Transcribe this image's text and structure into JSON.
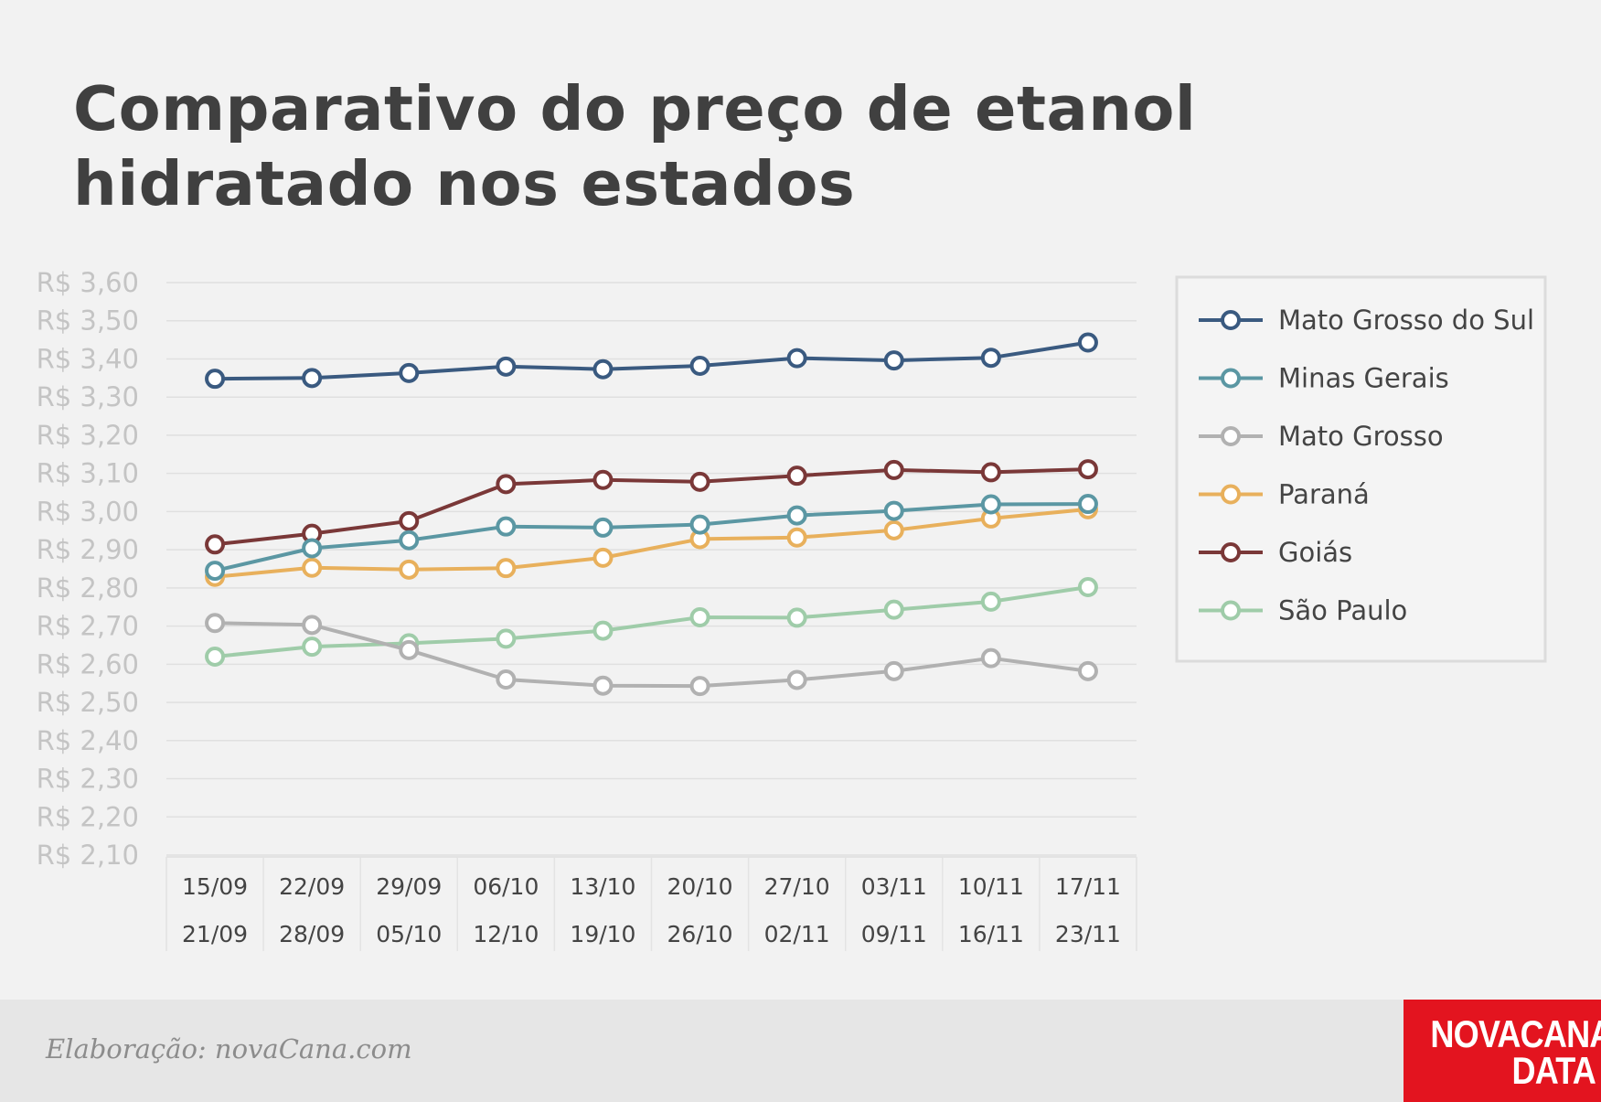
{
  "title": "Comparativo do preço de etanol hidratado nos estados",
  "footer": {
    "credit": "Elaboração: novaCana.com",
    "logo_line1": "NOVACANA",
    "logo_line2": "DATA"
  },
  "chart_data": {
    "type": "line",
    "title": "Comparativo do preço de etanol hidratado nos estados",
    "xlabel": "",
    "ylabel": "",
    "ylim": [
      2.1,
      3.6
    ],
    "ytick_step": 0.1,
    "ytick_labels": [
      "R$ 3,60",
      "R$ 3,50",
      "R$ 3,40",
      "R$ 3,30",
      "R$ 3,20",
      "R$ 3,10",
      "R$ 3,00",
      "R$ 2,90",
      "R$ 2,80",
      "R$ 2,70",
      "R$ 2,60",
      "R$ 2,50",
      "R$ 2,40",
      "R$ 2,30",
      "R$ 2,20",
      "R$ 2,10"
    ],
    "categories": [
      {
        "start": "15/09",
        "end": "21/09"
      },
      {
        "start": "22/09",
        "end": "28/09"
      },
      {
        "start": "29/09",
        "end": "05/10"
      },
      {
        "start": "06/10",
        "end": "12/10"
      },
      {
        "start": "13/10",
        "end": "19/10"
      },
      {
        "start": "20/10",
        "end": "26/10"
      },
      {
        "start": "27/10",
        "end": "02/11"
      },
      {
        "start": "03/11",
        "end": "09/11"
      },
      {
        "start": "10/11",
        "end": "16/11"
      },
      {
        "start": "17/11",
        "end": "23/11"
      }
    ],
    "grid": true,
    "legend_position": "right",
    "series": [
      {
        "name": "Mato Grosso do Sul",
        "color": "#3a5a80",
        "values": [
          3.348,
          3.35,
          3.363,
          3.38,
          3.373,
          3.382,
          3.402,
          3.396,
          3.403,
          3.443
        ]
      },
      {
        "name": "Minas Gerais",
        "color": "#5b97a3",
        "values": [
          2.845,
          2.904,
          2.925,
          2.961,
          2.958,
          2.966,
          2.99,
          3.002,
          3.019,
          3.02
        ]
      },
      {
        "name": "Mato Grosso",
        "color": "#b1b1b1",
        "values": [
          2.708,
          2.703,
          2.637,
          2.56,
          2.544,
          2.543,
          2.559,
          2.582,
          2.616,
          2.582
        ]
      },
      {
        "name": "Paraná",
        "color": "#e8b05c",
        "values": [
          2.829,
          2.853,
          2.848,
          2.852,
          2.879,
          2.928,
          2.932,
          2.951,
          2.982,
          3.006
        ]
      },
      {
        "name": "Goiás",
        "color": "#7a3838",
        "values": [
          2.914,
          2.942,
          2.975,
          3.072,
          3.083,
          3.078,
          3.094,
          3.109,
          3.103,
          3.111
        ]
      },
      {
        "name": "São Paulo",
        "color": "#9fcca9",
        "values": [
          2.62,
          2.646,
          2.655,
          2.667,
          2.688,
          2.723,
          2.722,
          2.743,
          2.764,
          2.802
        ]
      }
    ]
  }
}
